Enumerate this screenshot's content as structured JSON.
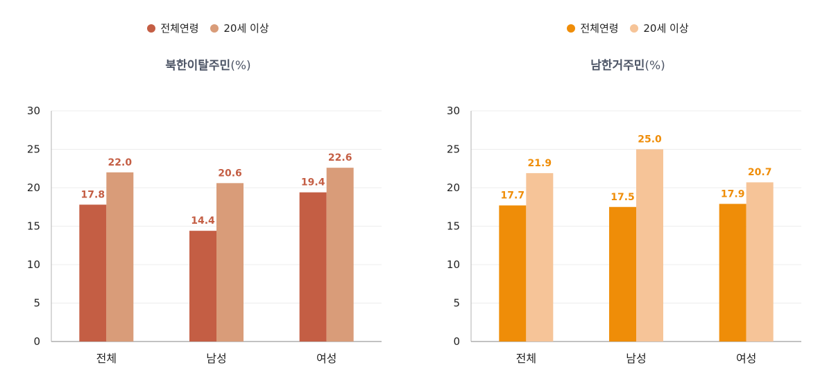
{
  "chart_data": [
    {
      "type": "bar",
      "title": "북한이탈주민",
      "unit": "(%)",
      "categories": [
        "전체",
        "남성",
        "여성"
      ],
      "series": [
        {
          "name": "전체연령",
          "values": [
            17.8,
            14.4,
            19.4
          ],
          "color": "#c45e44",
          "label_color": "#c45e44"
        },
        {
          "name": "20세 이상",
          "values": [
            22.0,
            20.6,
            22.6
          ],
          "color": "#d99c79",
          "label_color": "#c45e44"
        }
      ],
      "ylim": [
        0,
        30
      ],
      "yticks": [
        0,
        5,
        10,
        15,
        20,
        25,
        30
      ],
      "grid": true,
      "legend_position": "top-center"
    },
    {
      "type": "bar",
      "title": "남한거주민",
      "unit": "(%)",
      "categories": [
        "전체",
        "남성",
        "여성"
      ],
      "series": [
        {
          "name": "전체연령",
          "values": [
            17.7,
            17.5,
            17.9
          ],
          "color": "#ef8d08",
          "label_color": "#ef8d08"
        },
        {
          "name": "20세 이상",
          "values": [
            21.9,
            25.0,
            20.7
          ],
          "color": "#f6c498",
          "label_color": "#ef8d08"
        }
      ],
      "ylim": [
        0,
        30
      ],
      "yticks": [
        0,
        5,
        10,
        15,
        20,
        25,
        30
      ],
      "grid": true,
      "legend_position": "top-center"
    }
  ]
}
